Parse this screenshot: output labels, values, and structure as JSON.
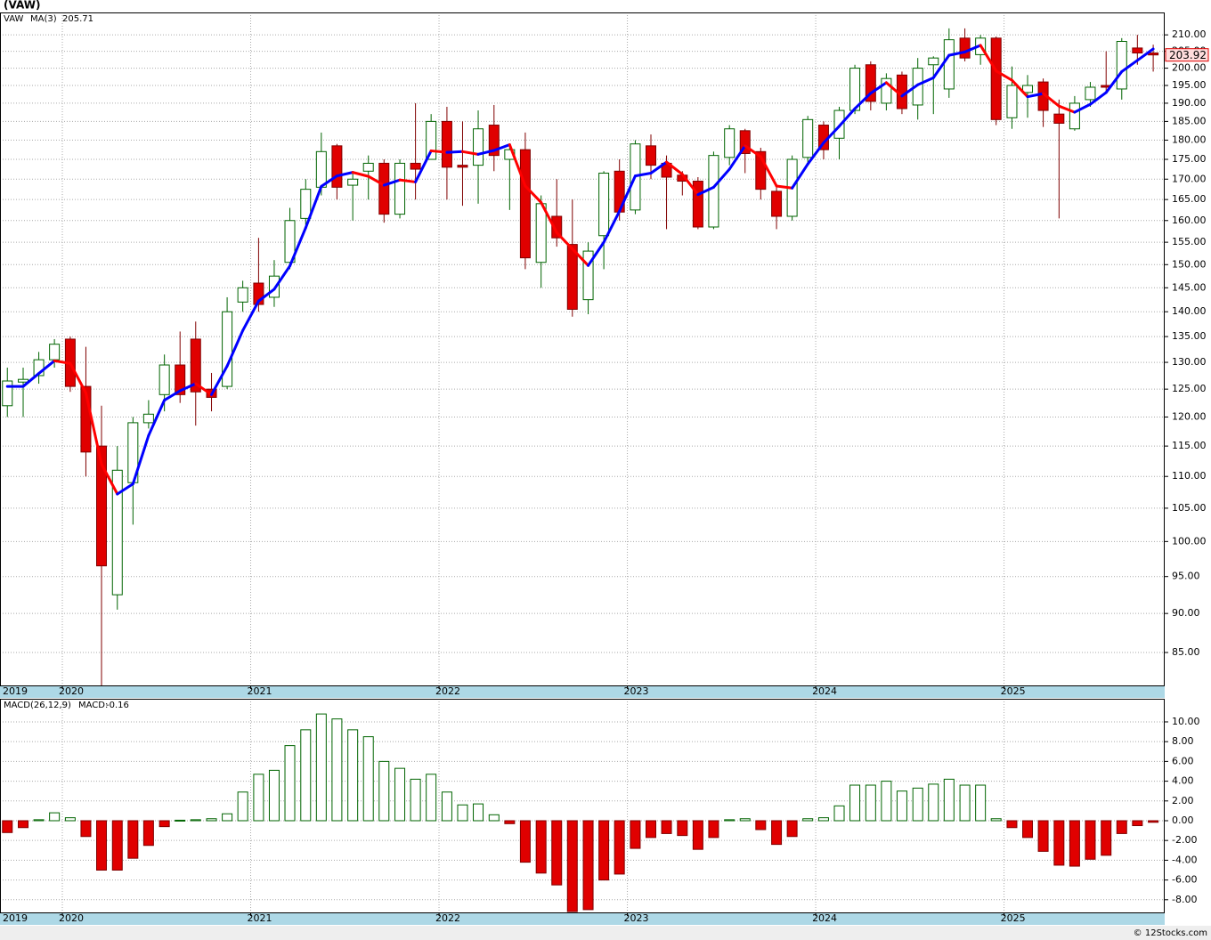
{
  "credit": "© 12Stocks.com",
  "chart_data": [
    {
      "type": "candlestick",
      "title": "(VAW)",
      "symbol": "VAW",
      "log": true,
      "grid": true,
      "up_color": "#006400",
      "down_color": "#e00000",
      "x": [
        2019.708,
        2019.792,
        2019.875,
        2019.958,
        2020.042,
        2020.125,
        2020.208,
        2020.292,
        2020.375,
        2020.458,
        2020.542,
        2020.625,
        2020.708,
        2020.792,
        2020.875,
        2020.958,
        2021.042,
        2021.125,
        2021.208,
        2021.292,
        2021.375,
        2021.458,
        2021.542,
        2021.625,
        2021.708,
        2021.792,
        2021.875,
        2021.958,
        2022.042,
        2022.125,
        2022.208,
        2022.292,
        2022.375,
        2022.458,
        2022.542,
        2022.625,
        2022.708,
        2022.792,
        2022.875,
        2022.958,
        2023.042,
        2023.125,
        2023.208,
        2023.292,
        2023.375,
        2023.458,
        2023.542,
        2023.625,
        2023.708,
        2023.792,
        2023.875,
        2023.958,
        2024.042,
        2024.125,
        2024.208,
        2024.292,
        2024.375,
        2024.458,
        2024.542,
        2024.625,
        2024.708,
        2024.792,
        2024.875,
        2024.958,
        2025.042,
        2025.125,
        2025.208,
        2025.292,
        2025.375,
        2025.458,
        2025.542,
        2025.625,
        2025.708,
        2025.792
      ],
      "open": [
        122,
        126.3,
        127.5,
        130.5,
        134.5,
        125.5,
        115,
        92.5,
        109,
        119,
        124,
        129.5,
        134.5,
        125,
        125.5,
        142,
        146,
        143,
        150.5,
        160.5,
        168,
        178.5,
        168.5,
        172,
        174,
        161.5,
        174,
        175,
        185,
        173.5,
        173.5,
        184,
        175,
        177.5,
        150.5,
        161,
        154.5,
        142.5,
        156.5,
        172,
        162.5,
        178.5,
        174,
        171,
        169.5,
        158.5,
        175.5,
        182.5,
        177,
        167,
        161,
        175.5,
        184,
        180.5,
        188,
        201,
        190,
        198,
        189.5,
        201,
        194,
        209,
        204,
        209,
        186,
        193,
        196,
        187,
        183,
        191,
        195,
        194,
        206,
        204.5
      ],
      "high": [
        129,
        129,
        132,
        134.5,
        135,
        133,
        122,
        115,
        120,
        123,
        131.5,
        136,
        138,
        128,
        143,
        146.5,
        156,
        151,
        163,
        170,
        182,
        179,
        172,
        176,
        175,
        175,
        190,
        187,
        189,
        185,
        188,
        189.5,
        179,
        182,
        166,
        170,
        165,
        155,
        172,
        175,
        180,
        181.5,
        176,
        172,
        170.5,
        177,
        184,
        183,
        178,
        168,
        176,
        186.5,
        185,
        189,
        201,
        202,
        198.5,
        199,
        203,
        203.5,
        212,
        212,
        210,
        209.5,
        200.5,
        198,
        197,
        191,
        192,
        196,
        205,
        209,
        210,
        207
      ],
      "low": [
        120,
        120,
        126,
        129,
        124.5,
        110,
        81,
        90.5,
        102.5,
        118,
        121,
        122.5,
        118.5,
        121,
        125,
        140,
        140,
        141,
        149,
        159,
        166,
        165,
        160,
        165,
        159.5,
        160.5,
        165,
        175,
        165,
        163.5,
        164,
        172,
        162.5,
        149,
        145,
        154,
        139,
        139.5,
        149,
        160,
        161.5,
        170,
        158,
        166,
        158,
        158,
        173.5,
        171.5,
        165,
        158,
        160,
        174,
        175,
        175,
        187,
        188,
        188,
        187,
        185.5,
        187,
        191.5,
        202,
        201,
        184,
        183,
        186,
        183.5,
        160.5,
        182.5,
        189,
        193.5,
        191,
        201,
        199
      ],
      "close": [
        126.5,
        126.8,
        130.5,
        133.5,
        125.5,
        114,
        96.5,
        111,
        119,
        120.5,
        129.5,
        124,
        124.5,
        123.5,
        140,
        145,
        141.5,
        147.5,
        160,
        167.5,
        177,
        168,
        170,
        174,
        161.5,
        174,
        172.5,
        185,
        173,
        173,
        183,
        176,
        177.5,
        151.5,
        164,
        156,
        140.5,
        153,
        171.5,
        162,
        179,
        173.5,
        170.5,
        169.5,
        158.5,
        176,
        183,
        176.5,
        167.5,
        161,
        175,
        185.5,
        177.5,
        188,
        200,
        190.5,
        197,
        188.5,
        200,
        203,
        208.5,
        203,
        209,
        185.5,
        195,
        195,
        188,
        184.5,
        190,
        194.5,
        194.5,
        208,
        204.5,
        203.92
      ],
      "ma": {
        "name": "MA(3)",
        "up_color": "#0000ff",
        "down_color": "#ff0000",
        "values": [
          125.5,
          125.5,
          127.9,
          130.3,
          129.8,
          124.3,
          112,
          107.2,
          108.8,
          116.8,
          123,
          124.7,
          126,
          124,
          129.3,
          136.2,
          142.2,
          144.7,
          149.7,
          158.3,
          168.2,
          170.8,
          171.7,
          170.7,
          168.5,
          169.8,
          169.3,
          177.2,
          176.8,
          177,
          176.3,
          177.3,
          178.8,
          168.3,
          164.3,
          157.2,
          153.5,
          149.8,
          155,
          162.2,
          170.8,
          171.5,
          174.3,
          171.2,
          166.2,
          168,
          172.5,
          178.5,
          175.7,
          168.3,
          167.8,
          173.8,
          179.3,
          183.7,
          188.5,
          192.8,
          195.8,
          192,
          195.2,
          197.2,
          203.8,
          204.8,
          206.8,
          199.2,
          196.5,
          191.8,
          192.7,
          189.2,
          187.5,
          189.7,
          193,
          199,
          202.3,
          205.71
        ]
      },
      "xlim": [
        2019.669,
        2025.853
      ],
      "xticks": [
        2019,
        2020,
        2021,
        2022,
        2023,
        2024,
        2025
      ],
      "ylim": [
        81,
        217
      ],
      "yticks": [
        {
          "value": 85,
          "label": "85.00"
        },
        {
          "value": 90,
          "label": "90.00"
        },
        {
          "value": 95,
          "label": "95.00"
        },
        {
          "value": 100,
          "label": "100.00"
        },
        {
          "value": 105,
          "label": "105.00"
        },
        {
          "value": 110,
          "label": "110.00"
        },
        {
          "value": 115,
          "label": "115.00"
        },
        {
          "value": 120,
          "label": "120.00"
        },
        {
          "value": 125,
          "label": "125.00"
        },
        {
          "value": 130,
          "label": "130.00"
        },
        {
          "value": 135,
          "label": "135.00"
        },
        {
          "value": 140,
          "label": "140.00"
        },
        {
          "value": 145,
          "label": "145.00"
        },
        {
          "value": 150,
          "label": "150.00"
        },
        {
          "value": 155,
          "label": "155.00"
        },
        {
          "value": 160,
          "label": "160.00"
        },
        {
          "value": 165,
          "label": "165.00"
        },
        {
          "value": 170,
          "label": "170.00"
        },
        {
          "value": 175,
          "label": "175.00"
        },
        {
          "value": 180,
          "label": "180.00"
        },
        {
          "value": 185,
          "label": "185.00"
        },
        {
          "value": 190,
          "label": "190.00"
        },
        {
          "value": 195,
          "label": "195.00"
        },
        {
          "value": 200,
          "label": "200.00"
        },
        {
          "value": 205,
          "label": "205.00"
        },
        {
          "value": 210,
          "label": "210.00"
        }
      ]
    },
    {
      "type": "bar",
      "title": "MACD(26,12,9)",
      "value_name": "MACD:",
      "grid": true,
      "up_color": "#006400",
      "down_color": "#e00000",
      "x": [
        2019.708,
        2019.792,
        2019.875,
        2019.958,
        2020.042,
        2020.125,
        2020.208,
        2020.292,
        2020.375,
        2020.458,
        2020.542,
        2020.625,
        2020.708,
        2020.792,
        2020.875,
        2020.958,
        2021.042,
        2021.125,
        2021.208,
        2021.292,
        2021.375,
        2021.458,
        2021.542,
        2021.625,
        2021.708,
        2021.792,
        2021.875,
        2021.958,
        2022.042,
        2022.125,
        2022.208,
        2022.292,
        2022.375,
        2022.458,
        2022.542,
        2022.625,
        2022.708,
        2022.792,
        2022.875,
        2022.958,
        2023.042,
        2023.125,
        2023.208,
        2023.292,
        2023.375,
        2023.458,
        2023.542,
        2023.625,
        2023.708,
        2023.792,
        2023.875,
        2023.958,
        2024.042,
        2024.125,
        2024.208,
        2024.292,
        2024.375,
        2024.458,
        2024.542,
        2024.625,
        2024.708,
        2024.792,
        2024.875,
        2024.958,
        2025.042,
        2025.125,
        2025.208,
        2025.292,
        2025.375,
        2025.458,
        2025.542,
        2025.625,
        2025.708,
        2025.792
      ],
      "values": [
        -1.2,
        -0.7,
        0.1,
        0.8,
        0.3,
        -1.6,
        -5.0,
        -5.0,
        -3.8,
        -2.5,
        -0.6,
        0.05,
        0.1,
        0.2,
        0.7,
        2.9,
        4.7,
        5.1,
        7.6,
        9.2,
        10.8,
        10.3,
        9.2,
        8.5,
        6.0,
        5.3,
        4.2,
        4.7,
        2.9,
        1.6,
        1.7,
        0.6,
        -0.3,
        -4.2,
        -5.3,
        -6.5,
        -9.2,
        -9.0,
        -6.0,
        -5.4,
        -2.8,
        -1.7,
        -1.3,
        -1.5,
        -2.9,
        -1.7,
        0.1,
        0.2,
        -0.9,
        -2.4,
        -1.6,
        0.2,
        0.3,
        1.5,
        3.6,
        3.6,
        4.0,
        3.0,
        3.3,
        3.7,
        4.2,
        3.6,
        3.6,
        0.2,
        -0.7,
        -1.7,
        -3.1,
        -4.5,
        -4.6,
        -3.9,
        -3.5,
        -1.3,
        -0.5,
        -0.16
      ],
      "xlim": [
        2019.669,
        2025.853
      ],
      "xticks": [
        2019,
        2020,
        2021,
        2022,
        2023,
        2024,
        2025
      ],
      "ylim": [
        -9.28,
        12.34
      ],
      "yticks": [
        {
          "value": -8,
          "label": "-8.00"
        },
        {
          "value": -6,
          "label": "-6.00"
        },
        {
          "value": -4,
          "label": "-4.00"
        },
        {
          "value": -2,
          "label": "-2.00"
        },
        {
          "value": 0,
          "label": "0.00"
        },
        {
          "value": 2,
          "label": "2.00"
        },
        {
          "value": 4,
          "label": "4.00"
        },
        {
          "value": 6,
          "label": "6.00"
        },
        {
          "value": 8,
          "label": "8.00"
        },
        {
          "value": 10,
          "label": "10.00"
        }
      ]
    }
  ]
}
